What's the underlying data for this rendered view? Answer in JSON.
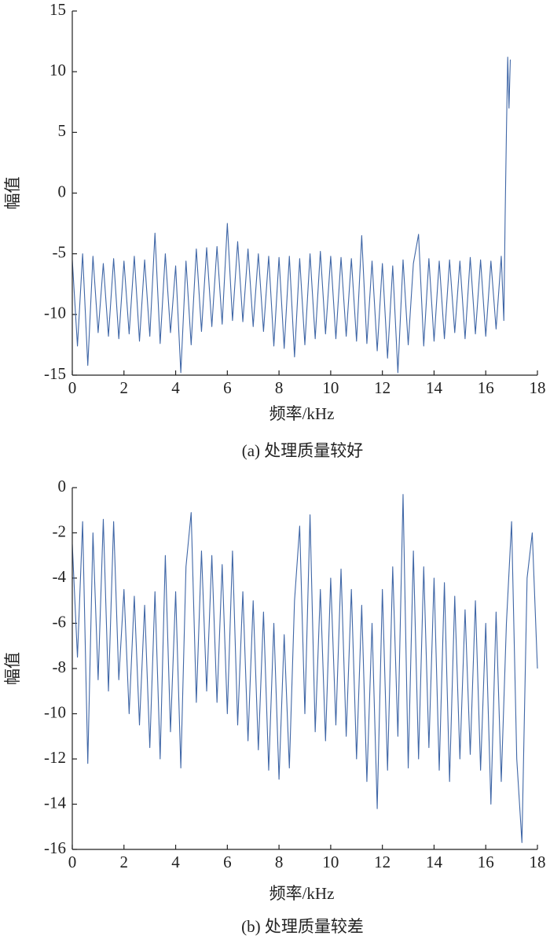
{
  "chart_data": [
    {
      "type": "line",
      "caption": "(a) 处理质量较好",
      "x_label": "频率/kHz",
      "y_label": "幅值",
      "color": "#3f66a6",
      "xlim": [
        0,
        18
      ],
      "xticks": [
        0,
        2,
        4,
        6,
        8,
        10,
        12,
        14,
        16,
        18
      ],
      "ylim": [
        -15,
        15
      ],
      "yticks": [
        -15,
        -10,
        -5,
        0,
        5,
        10,
        15
      ],
      "x": [
        0,
        0.2,
        0.4,
        0.6,
        0.8,
        1.0,
        1.2,
        1.4,
        1.6,
        1.8,
        2.0,
        2.2,
        2.4,
        2.6,
        2.8,
        3.0,
        3.2,
        3.4,
        3.6,
        3.8,
        4.0,
        4.2,
        4.4,
        4.6,
        4.8,
        5.0,
        5.2,
        5.4,
        5.6,
        5.8,
        6.0,
        6.2,
        6.4,
        6.6,
        6.8,
        7.0,
        7.2,
        7.4,
        7.6,
        7.8,
        8.0,
        8.2,
        8.4,
        8.6,
        8.8,
        9.0,
        9.2,
        9.4,
        9.6,
        9.8,
        10.0,
        10.2,
        10.4,
        10.6,
        10.8,
        11.0,
        11.2,
        11.4,
        11.6,
        11.8,
        12.0,
        12.2,
        12.4,
        12.6,
        12.8,
        13.0,
        13.2,
        13.4,
        13.6,
        13.8,
        14.0,
        14.2,
        14.4,
        14.6,
        14.8,
        15.0,
        15.2,
        15.4,
        15.6,
        15.8,
        16.0,
        16.2,
        16.4,
        16.6,
        16.7,
        16.75,
        16.8,
        16.85,
        16.9,
        16.95
      ],
      "values": [
        -5.5,
        -12.6,
        -5,
        -14.2,
        -5.2,
        -11.5,
        -5.8,
        -11.8,
        -5.4,
        -12,
        -5.6,
        -11.6,
        -5.2,
        -12.2,
        -5.5,
        -11.8,
        -3.3,
        -12.4,
        -5,
        -11.5,
        -6,
        -14.8,
        -5.6,
        -12.5,
        -4.6,
        -11.4,
        -4.5,
        -11,
        -4.4,
        -10.8,
        -2.5,
        -10.5,
        -4,
        -10.6,
        -4.6,
        -11,
        -5,
        -11.4,
        -5.2,
        -12.6,
        -5.3,
        -12.8,
        -5.2,
        -13.5,
        -5.4,
        -12.5,
        -5,
        -12,
        -4.8,
        -11.6,
        -5.2,
        -12,
        -5.3,
        -11.8,
        -5.4,
        -12.2,
        -3.5,
        -12.4,
        -5.6,
        -13,
        -5.8,
        -13.6,
        -6,
        -14.8,
        -5.5,
        -12.5,
        -5.8,
        -3.4,
        -12.6,
        -5.4,
        -12.2,
        -5.6,
        -12,
        -5.5,
        -11.5,
        -5.6,
        -12,
        -5.3,
        -11.6,
        -5.5,
        -11.8,
        -5.6,
        -11.2,
        -5.2,
        -10.5,
        -2,
        5,
        11.2,
        7,
        11
      ]
    },
    {
      "type": "line",
      "caption": "(b) 处理质量较差",
      "x_label": "频率/kHz",
      "y_label": "幅值",
      "color": "#3f66a6",
      "xlim": [
        0,
        18
      ],
      "xticks": [
        0,
        2,
        4,
        6,
        8,
        10,
        12,
        14,
        16,
        18
      ],
      "ylim": [
        -16,
        0
      ],
      "yticks": [
        -16,
        -14,
        -12,
        -10,
        -8,
        -6,
        -4,
        -2,
        0
      ],
      "x": [
        0,
        0.2,
        0.4,
        0.6,
        0.8,
        1.0,
        1.2,
        1.4,
        1.6,
        1.8,
        2.0,
        2.2,
        2.4,
        2.6,
        2.8,
        3.0,
        3.2,
        3.4,
        3.6,
        3.8,
        4.0,
        4.2,
        4.4,
        4.6,
        4.8,
        5.0,
        5.2,
        5.4,
        5.6,
        5.8,
        6.0,
        6.2,
        6.4,
        6.6,
        6.8,
        7.0,
        7.2,
        7.4,
        7.6,
        7.8,
        8.0,
        8.2,
        8.4,
        8.6,
        8.8,
        9.0,
        9.2,
        9.4,
        9.6,
        9.8,
        10.0,
        10.2,
        10.4,
        10.6,
        10.8,
        11.0,
        11.2,
        11.4,
        11.6,
        11.8,
        12.0,
        12.2,
        12.4,
        12.6,
        12.8,
        13.0,
        13.2,
        13.4,
        13.6,
        13.8,
        14.0,
        14.2,
        14.4,
        14.6,
        14.8,
        15.0,
        15.2,
        15.4,
        15.6,
        15.8,
        16.0,
        16.2,
        16.4,
        16.6,
        16.8,
        17.0,
        17.2,
        17.4,
        17.6,
        17.8,
        18.0
      ],
      "values": [
        -2.5,
        -7.5,
        -1.5,
        -12.2,
        -2,
        -8.5,
        -1.4,
        -9,
        -1.5,
        -8.5,
        -4.5,
        -10,
        -4.8,
        -10.5,
        -5.2,
        -11.5,
        -4.6,
        -12,
        -3,
        -10.8,
        -4.6,
        -12.4,
        -3.5,
        -1.1,
        -9.5,
        -2.8,
        -9,
        -3,
        -9.5,
        -3.4,
        -10,
        -2.8,
        -10.5,
        -4.6,
        -11.2,
        -5,
        -11.6,
        -5.5,
        -12.5,
        -6,
        -12.9,
        -6.5,
        -12.4,
        -5,
        -1.7,
        -10,
        -1.2,
        -10.8,
        -4.5,
        -11.2,
        -4,
        -10.5,
        -3.6,
        -11,
        -4.5,
        -12,
        -5.2,
        -13,
        -6,
        -14.2,
        -4.5,
        -12.5,
        -3.5,
        -11,
        -0.3,
        -12.4,
        -2.8,
        -12,
        -3.5,
        -11.5,
        -4,
        -12.5,
        -4.2,
        -13,
        -4.8,
        -12,
        -5.4,
        -11.8,
        -5,
        -12.5,
        -6,
        -14,
        -5.5,
        -13,
        -6,
        -1.5,
        -12,
        -15.7,
        -4,
        -2,
        -8
      ]
    }
  ]
}
